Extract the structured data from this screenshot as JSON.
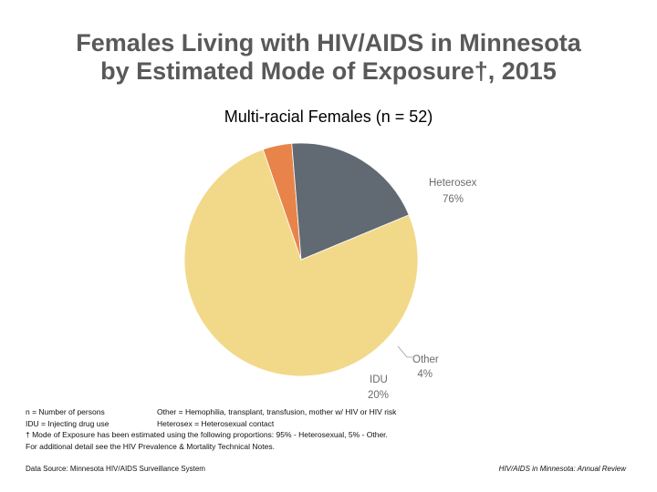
{
  "title": {
    "line1": "Females Living with HIV/AIDS in Minnesota",
    "line2": "by Estimated Mode of Exposure†, 2015"
  },
  "chart_data": {
    "type": "pie",
    "title": "Multi-racial Females (n = 52)",
    "slices": [
      {
        "label": "Heterosex",
        "value": 76,
        "value_label": "76%",
        "color": "#f2d98a"
      },
      {
        "label": "Other",
        "value": 4,
        "value_label": "4%",
        "color": "#e8844a"
      },
      {
        "label": "IDU",
        "value": 20,
        "value_label": "20%",
        "color": "#616a72"
      }
    ]
  },
  "notes": {
    "row1_left": "n = Number of persons",
    "row1_right": "Other = Hemophilia, transplant, transfusion, mother w/ HIV or HIV risk",
    "row2_left": "IDU = Injecting drug use",
    "row2_right": "Heterosex = Heterosexual contact",
    "row3": "† Mode of Exposure has been estimated using the following proportions: 95% - Heterosexual, 5% - Other.",
    "row4": "For additional detail see the HIV Prevalence & Mortality Technical Notes."
  },
  "footer": {
    "source": "Data Source: Minnesota HIV/AIDS Surveillance System",
    "publication": "HIV/AIDS in Minnesota: Annual Review"
  }
}
